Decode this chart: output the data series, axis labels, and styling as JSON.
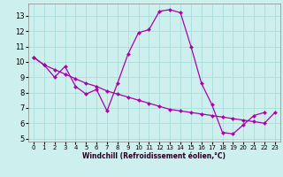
{
  "xlabel": "Windchill (Refroidissement éolien,°C)",
  "background_color": "#cdf0ee",
  "grid_color": "#aaddda",
  "line_color": "#aa00aa",
  "x_values": [
    0,
    1,
    2,
    3,
    4,
    5,
    6,
    7,
    8,
    9,
    10,
    11,
    12,
    13,
    14,
    15,
    16,
    17,
    18,
    19,
    20,
    21,
    22,
    23
  ],
  "curve1": [
    10.3,
    9.8,
    9.0,
    9.7,
    8.4,
    7.9,
    8.2,
    6.8,
    8.6,
    10.5,
    11.9,
    12.1,
    13.3,
    13.4,
    13.2,
    11.0,
    8.6,
    7.2,
    5.4,
    5.3,
    5.9,
    6.5,
    6.7,
    null
  ],
  "curve2": [
    10.3,
    9.8,
    9.5,
    9.2,
    8.9,
    8.6,
    8.4,
    8.1,
    7.9,
    7.7,
    7.5,
    7.3,
    7.1,
    6.9,
    6.8,
    6.7,
    6.6,
    6.5,
    6.4,
    6.3,
    6.2,
    6.1,
    6.0,
    6.7
  ],
  "ylim_min": 4.8,
  "ylim_max": 13.8,
  "xlim_min": -0.5,
  "xlim_max": 23.5,
  "yticks": [
    5,
    6,
    7,
    8,
    9,
    10,
    11,
    12,
    13
  ],
  "xticks": [
    0,
    1,
    2,
    3,
    4,
    5,
    6,
    7,
    8,
    9,
    10,
    11,
    12,
    13,
    14,
    15,
    16,
    17,
    18,
    19,
    20,
    21,
    22,
    23
  ],
  "xlabel_fontsize": 5.5,
  "tick_fontsize_x": 5.0,
  "tick_fontsize_y": 6.0,
  "linewidth": 0.9,
  "markersize": 2.2
}
